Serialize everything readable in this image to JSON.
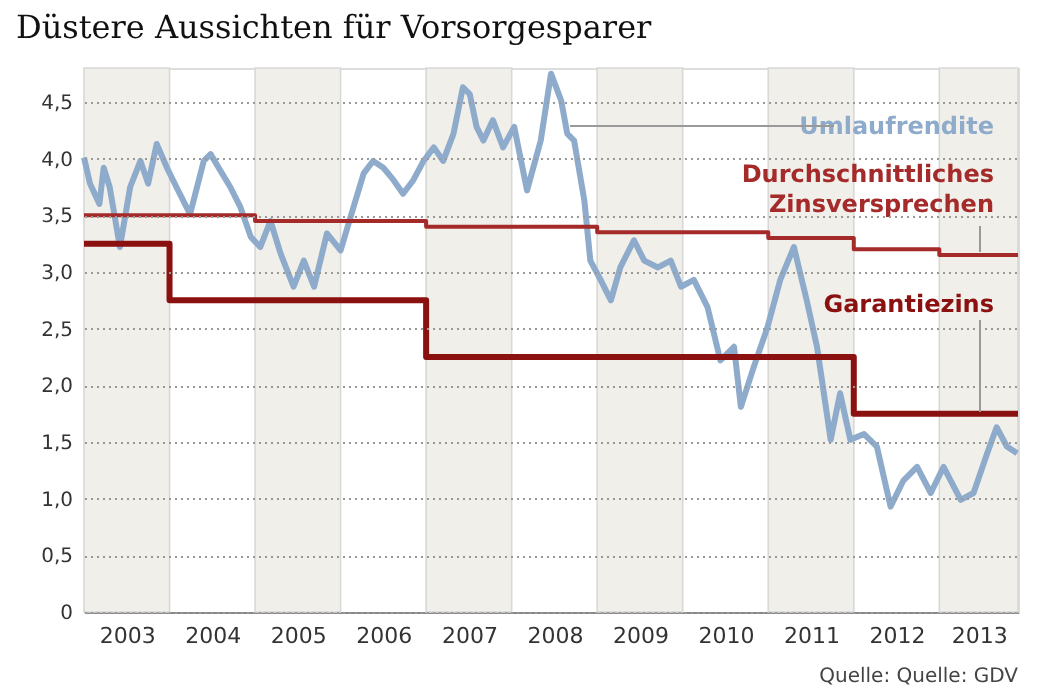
{
  "chart_data": {
    "type": "line",
    "title": "Düstere Aussichten für Vorsorgesparer",
    "xlim": [
      2003,
      2013.92
    ],
    "ylim": [
      0,
      4.8
    ],
    "xticks": [
      {
        "value": 2003.5,
        "label": "2003"
      },
      {
        "value": 2004.5,
        "label": "2004"
      },
      {
        "value": 2005.5,
        "label": "2005"
      },
      {
        "value": 2006.5,
        "label": "2006"
      },
      {
        "value": 2007.5,
        "label": "2007"
      },
      {
        "value": 2008.5,
        "label": "2008"
      },
      {
        "value": 2009.5,
        "label": "2009"
      },
      {
        "value": 2010.5,
        "label": "2010"
      },
      {
        "value": 2011.5,
        "label": "2011"
      },
      {
        "value": 2012.5,
        "label": "2012"
      },
      {
        "value": 2013.46,
        "label": "2013"
      }
    ],
    "yticks": [
      0,
      {
        "value": 0.5,
        "label": "0,5"
      },
      {
        "value": 1,
        "label": "1,0"
      },
      {
        "value": 1.5,
        "label": "1,5"
      },
      {
        "value": 2,
        "label": "2,0"
      },
      {
        "value": 2.5,
        "label": "2,5"
      },
      {
        "value": 3,
        "label": "3,0"
      },
      {
        "value": 3.5,
        "label": "3,5"
      },
      {
        "value": 4,
        "label": "4,0"
      },
      {
        "value": 4.5,
        "label": "4,5"
      }
    ],
    "grid": "y",
    "legend": false,
    "bands": [
      {
        "axis": "x",
        "from": 2003,
        "to": 2004,
        "color": "#f1efe9"
      },
      {
        "axis": "x",
        "from": 2005,
        "to": 2006,
        "color": "#f1efe9"
      },
      {
        "axis": "x",
        "from": 2007,
        "to": 2008,
        "color": "#f1efe9"
      },
      {
        "axis": "x",
        "from": 2009,
        "to": 2010,
        "color": "#f1efe9"
      },
      {
        "axis": "x",
        "from": 2011,
        "to": 2012,
        "color": "#f1efe9"
      },
      {
        "axis": "x",
        "from": 2013,
        "to": 2013.92,
        "color": "#f1efe9"
      }
    ],
    "series": [
      {
        "name": "Umlaufrendite",
        "type": "line",
        "color": "#8eabcb",
        "x": [
          2003.0,
          2003.07,
          2003.18,
          2003.23,
          2003.3,
          2003.42,
          2003.54,
          2003.66,
          2003.75,
          2003.85,
          2003.97,
          2004.08,
          2004.24,
          2004.4,
          2004.48,
          2004.59,
          2004.71,
          2004.83,
          2004.95,
          2005.06,
          2005.18,
          2005.3,
          2005.45,
          2005.57,
          2005.69,
          2005.84,
          2006.0,
          2006.15,
          2006.27,
          2006.38,
          2006.5,
          2006.62,
          2006.73,
          2006.85,
          2006.97,
          2007.09,
          2007.2,
          2007.32,
          2007.43,
          2007.51,
          2007.59,
          2007.67,
          2007.78,
          2007.9,
          2008.03,
          2008.18,
          2008.34,
          2008.46,
          2008.58,
          2008.65,
          2008.73,
          2008.85,
          2008.92,
          2009.04,
          2009.16,
          2009.27,
          2009.43,
          2009.55,
          2009.71,
          2009.86,
          2009.98,
          2010.13,
          2010.29,
          2010.44,
          2010.6,
          2010.68,
          2010.83,
          2010.99,
          2011.14,
          2011.3,
          2011.45,
          2011.57,
          2011.73,
          2011.84,
          2011.96,
          2012.12,
          2012.27,
          2012.43,
          2012.58,
          2012.74,
          2012.9,
          2013.05,
          2013.25,
          2013.4,
          2013.56,
          2013.67,
          2013.79,
          2013.91
        ],
        "values": [
          4.01,
          3.78,
          3.6,
          3.92,
          3.75,
          3.22,
          3.75,
          3.98,
          3.78,
          4.13,
          3.92,
          3.75,
          3.51,
          3.98,
          4.04,
          3.9,
          3.75,
          3.57,
          3.31,
          3.22,
          3.45,
          3.16,
          2.87,
          3.1,
          2.87,
          3.34,
          3.19,
          3.57,
          3.87,
          3.98,
          3.92,
          3.81,
          3.69,
          3.81,
          3.98,
          4.1,
          3.98,
          4.22,
          4.63,
          4.57,
          4.28,
          4.16,
          4.34,
          4.1,
          4.28,
          3.72,
          4.16,
          4.75,
          4.51,
          4.22,
          4.16,
          3.63,
          3.1,
          2.93,
          2.75,
          3.04,
          3.28,
          3.1,
          3.04,
          3.1,
          2.87,
          2.93,
          2.69,
          2.22,
          2.34,
          1.81,
          2.16,
          2.51,
          2.93,
          3.22,
          2.75,
          2.34,
          1.52,
          1.93,
          1.52,
          1.57,
          1.46,
          0.93,
          1.16,
          1.28,
          1.05,
          1.28,
          0.99,
          1.05,
          1.4,
          1.63,
          1.46,
          1.4
        ]
      },
      {
        "name": "Durchschnittliches Zinsversprechen",
        "type": "step",
        "color": "#a52a2a",
        "x": [
          2003,
          2005,
          2007,
          2009,
          2011,
          2012,
          2013,
          2013.92
        ],
        "values": [
          3.5,
          3.45,
          3.4,
          3.35,
          3.3,
          3.2,
          3.15,
          3.15
        ]
      },
      {
        "name": "Garantiezins",
        "type": "step",
        "color": "#8b1010",
        "x": [
          2003,
          2004,
          2007,
          2012,
          2013.92
        ],
        "values": [
          3.25,
          2.75,
          2.25,
          1.75,
          1.75
        ]
      }
    ],
    "annotations": [
      "Quelle: Quelle: GDV"
    ]
  }
}
